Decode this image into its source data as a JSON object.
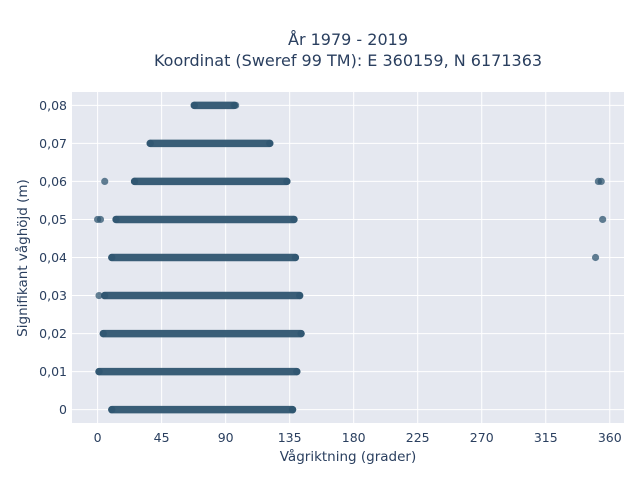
{
  "chart_data": {
    "type": "scatter",
    "title_lines": [
      "År 1979 - 2019",
      "Koordinat (Sweref 99 TM): E 360159, N 6171363"
    ],
    "xlabel": "Vågriktning (grader)",
    "ylabel": "Signifikant våghöjd (m)",
    "xlim": [
      -18,
      370
    ],
    "ylim": [
      -0.0035,
      0.0835
    ],
    "xticks": [
      0,
      45,
      90,
      135,
      180,
      225,
      270,
      315,
      360
    ],
    "xtick_labels": [
      "0",
      "45",
      "90",
      "135",
      "180",
      "225",
      "270",
      "315",
      "360"
    ],
    "yticks": [
      0,
      0.01,
      0.02,
      0.03,
      0.04,
      0.05,
      0.06,
      0.07,
      0.08
    ],
    "ytick_labels": [
      "0",
      "0,01",
      "0,02",
      "0,03",
      "0,04",
      "0,05",
      "0,06",
      "0,07",
      "0,08"
    ],
    "grid": true,
    "background_color": "#e5e8f0",
    "marker_color": "#2f5570",
    "series": [
      {
        "bands": [
          {
            "y": 0.08,
            "x_from": 68,
            "x_to": 96
          },
          {
            "y": 0.07,
            "x_from": 37,
            "x_to": 121
          },
          {
            "y": 0.06,
            "x_from": 26,
            "x_to": 133
          },
          {
            "y": 0.05,
            "x_from": 13,
            "x_to": 138
          },
          {
            "y": 0.04,
            "x_from": 10,
            "x_to": 139
          },
          {
            "y": 0.03,
            "x_from": 5,
            "x_to": 142
          },
          {
            "y": 0.02,
            "x_from": 4,
            "x_to": 143
          },
          {
            "y": 0.01,
            "x_from": 1,
            "x_to": 140
          },
          {
            "y": 0,
            "x_from": 10,
            "x_to": 137
          }
        ],
        "points": [
          {
            "x": 97,
            "y": 0.08
          },
          {
            "x": 5,
            "y": 0.06
          },
          {
            "x": 0,
            "y": 0.05
          },
          {
            "x": 2,
            "y": 0.05
          },
          {
            "x": 1,
            "y": 0.03
          },
          {
            "x": 137,
            "y": 0
          },
          {
            "x": 352,
            "y": 0.06
          },
          {
            "x": 354,
            "y": 0.06
          },
          {
            "x": 355,
            "y": 0.05
          },
          {
            "x": 350,
            "y": 0.04
          }
        ]
      }
    ]
  }
}
